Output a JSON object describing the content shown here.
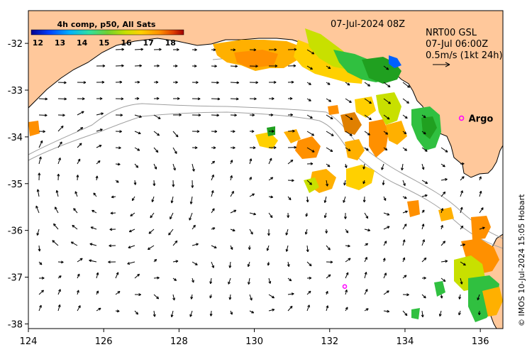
{
  "title": {
    "colorbar_title": "4h comp, p50, All Sats",
    "date": "07-Jul-2024 08Z",
    "product": "NRT00 GSL",
    "product_time": "07-Jul 06:00Z",
    "scale_label": "0.5m/s (1kt 24h)"
  },
  "colorbar": {
    "ticks": [
      "12",
      "13",
      "14",
      "15",
      "16",
      "17",
      "18"
    ],
    "tick_values": [
      12,
      13,
      14,
      15,
      16,
      17,
      18
    ],
    "range": [
      11.7,
      18.6
    ],
    "colors": [
      "#000090",
      "#0040ff",
      "#00b0ff",
      "#30e0a0",
      "#70d030",
      "#c8e000",
      "#ffd000",
      "#ff9000",
      "#e04000",
      "#a00000"
    ]
  },
  "axes": {
    "x_ticks": [
      "124",
      "126",
      "128",
      "130",
      "132",
      "134",
      "136"
    ],
    "x_values": [
      124,
      126,
      128,
      130,
      132,
      134,
      136
    ],
    "y_ticks": [
      "-32",
      "-33",
      "-34",
      "-35",
      "-36",
      "-37",
      "-38"
    ],
    "y_values": [
      -32,
      -33,
      -34,
      -35,
      -36,
      -37,
      -38
    ],
    "x_range": [
      124,
      136.6
    ],
    "y_range": [
      -31.3,
      -38.1
    ]
  },
  "markers": {
    "argo_label": "Argo",
    "argo_lon": 135.5,
    "argo_lat": -33.6,
    "float2_lon": 132.4,
    "float2_lat": -37.2
  },
  "credit": "© IMOS 10-Jul-2024 15:05 Hobart",
  "colors": {
    "land": "#ffc89b",
    "coast": "#000000",
    "arrows": "#000000",
    "marker": "#ff00ff",
    "isobath": "#a0a0a0"
  }
}
